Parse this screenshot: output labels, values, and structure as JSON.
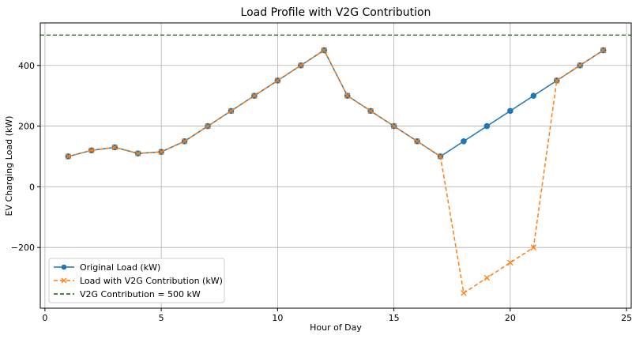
{
  "chart_data": {
    "type": "line",
    "title": "Load Profile with V2G Contribution",
    "xlabel": "Hour of Day",
    "ylabel": "EV Charging Load (kW)",
    "xlim": [
      -0.2,
      25.2
    ],
    "ylim": [
      -400,
      540
    ],
    "x_ticks": [
      0,
      5,
      10,
      15,
      20,
      25
    ],
    "y_ticks": [
      -200,
      0,
      200,
      400
    ],
    "grid": true,
    "legend_position": "lower-left",
    "x": [
      1,
      2,
      3,
      4,
      5,
      6,
      7,
      8,
      9,
      10,
      11,
      12,
      13,
      14,
      15,
      16,
      17,
      18,
      19,
      20,
      21,
      22,
      23,
      24
    ],
    "series": [
      {
        "name": "Original Load (kW)",
        "color": "#1f77b4",
        "line_style": "solid",
        "marker": "circle",
        "values": [
          100,
          120,
          130,
          110,
          115,
          150,
          200,
          250,
          300,
          350,
          400,
          450,
          300,
          250,
          200,
          150,
          100,
          150,
          200,
          250,
          300,
          350,
          400,
          450
        ]
      },
      {
        "name": "Load with V2G Contribution (kW)",
        "color": "#ff7f0e",
        "line_style": "dashed",
        "marker": "x",
        "values": [
          100,
          120,
          130,
          110,
          115,
          150,
          200,
          250,
          300,
          350,
          400,
          450,
          300,
          250,
          200,
          150,
          100,
          -350,
          -300,
          -250,
          -200,
          350,
          400,
          450
        ]
      }
    ],
    "reference_lines": [
      {
        "name": "V2G Contribution = 500 kW",
        "color": "#006400",
        "line_style": "dashed",
        "y": 500
      }
    ]
  }
}
